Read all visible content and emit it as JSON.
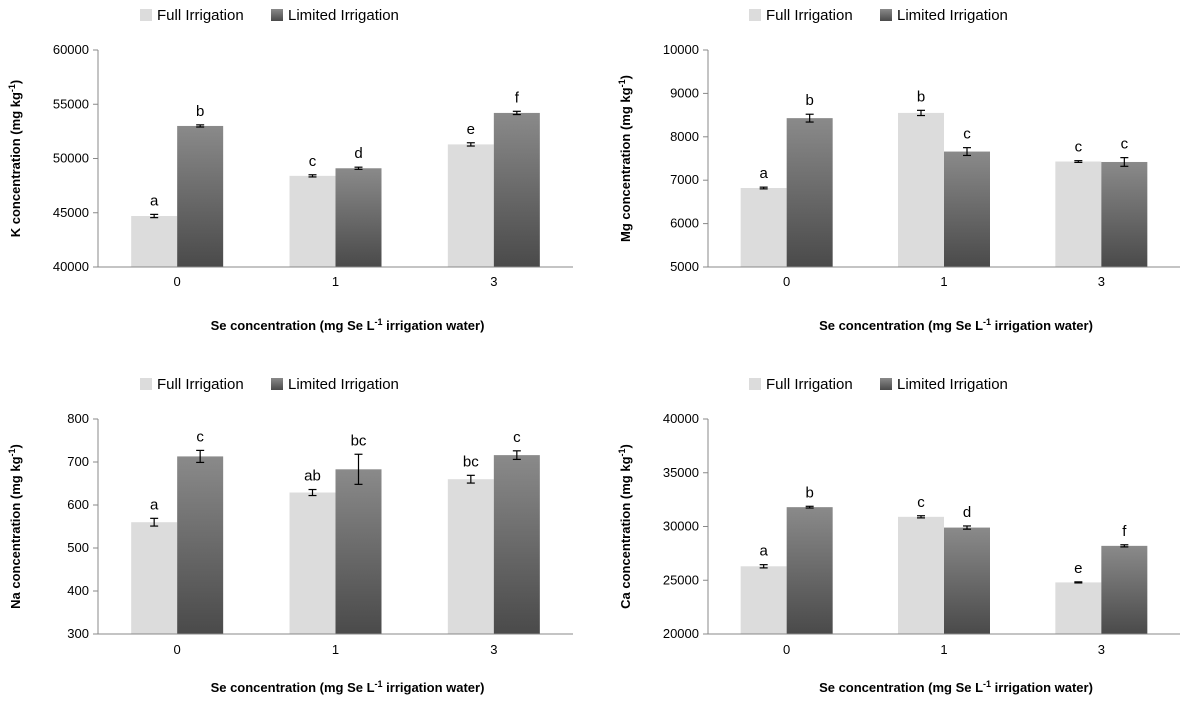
{
  "colors": {
    "full": "#dcdcdc",
    "limited_top": "#8a8a8a",
    "limited_bottom": "#4a4a4a",
    "axis": "#888888",
    "error_bar": "#000000"
  },
  "chart_data": [
    {
      "type": "bar",
      "categories": [
        "0",
        "1",
        "3"
      ],
      "series": [
        {
          "name": "Full Irrigation",
          "values": [
            44700,
            48400,
            51300
          ],
          "errors": [
            150,
            100,
            150
          ],
          "letters": [
            "a",
            "c",
            "e"
          ]
        },
        {
          "name": "Limited Irrigation",
          "values": [
            53000,
            49100,
            54200
          ],
          "errors": [
            100,
            100,
            150
          ],
          "letters": [
            "b",
            "d",
            "f"
          ]
        }
      ],
      "ylabel": {
        "main": "K concentration  (mg kg",
        "sup": "-1",
        "end": ")"
      },
      "xlabel": {
        "main": "Se concentration  (mg Se L",
        "sup": "-1",
        "end": " irrigation water)"
      },
      "ylim": [
        40000,
        60000
      ],
      "yticks": [
        "40000",
        "45000",
        "50000",
        "55000",
        "60000"
      ],
      "legend": "top"
    },
    {
      "type": "bar",
      "categories": [
        "0",
        "1",
        "3"
      ],
      "series": [
        {
          "name": "Full Irrigation",
          "values": [
            6820,
            8550,
            7430
          ],
          "errors": [
            20,
            60,
            20
          ],
          "letters": [
            "a",
            "b",
            "c"
          ]
        },
        {
          "name": "Limited Irrigation",
          "values": [
            8430,
            7660,
            7420
          ],
          "errors": [
            90,
            90,
            100
          ],
          "letters": [
            "b",
            "c",
            "c"
          ]
        }
      ],
      "ylabel": {
        "main": "Mg concentration  (mg kg",
        "sup": "-1",
        "end": ")"
      },
      "xlabel": {
        "main": "Se concentration  (mg Se L",
        "sup": "-1",
        "end": " irrigation water)"
      },
      "ylim": [
        5000,
        10000
      ],
      "yticks": [
        "5000",
        "6000",
        "7000",
        "8000",
        "9000",
        "10000"
      ],
      "legend": "top"
    },
    {
      "type": "bar",
      "categories": [
        "0",
        "1",
        "3"
      ],
      "series": [
        {
          "name": "Full Irrigation",
          "values": [
            560,
            629,
            660
          ],
          "errors": [
            9,
            7,
            9
          ],
          "letters": [
            "a",
            "ab",
            "bc"
          ]
        },
        {
          "name": "Limited Irrigation",
          "values": [
            713,
            683,
            716
          ],
          "errors": [
            14,
            35,
            10
          ],
          "letters": [
            "c",
            "bc",
            "c"
          ]
        }
      ],
      "ylabel": {
        "main": "Na concentration  (mg kg",
        "sup": "-1",
        "end": ")"
      },
      "xlabel": {
        "main": "Se concentration  (mg Se L",
        "sup": "-1",
        "end": " irrigation water)"
      },
      "ylim": [
        300,
        800
      ],
      "yticks": [
        "300",
        "400",
        "500",
        "600",
        "700",
        "800"
      ],
      "legend": "top"
    },
    {
      "type": "bar",
      "categories": [
        "0",
        "1",
        "3"
      ],
      "series": [
        {
          "name": "Full Irrigation",
          "values": [
            26300,
            30900,
            24800
          ],
          "errors": [
            150,
            100,
            50
          ],
          "letters": [
            "a",
            "c",
            "e"
          ]
        },
        {
          "name": "Limited Irrigation",
          "values": [
            31800,
            29900,
            28200
          ],
          "errors": [
            80,
            150,
            100
          ],
          "letters": [
            "b",
            "d",
            "f"
          ]
        }
      ],
      "ylabel": {
        "main": "Ca concentration  (mg kg",
        "sup": "-1",
        "end": ")"
      },
      "xlabel": {
        "main": "Se concentration  (mg Se L",
        "sup": "-1",
        "end": " irrigation water)"
      },
      "ylim": [
        20000,
        40000
      ],
      "yticks": [
        "20000",
        "25000",
        "30000",
        "35000",
        "40000"
      ],
      "legend": "top"
    }
  ]
}
